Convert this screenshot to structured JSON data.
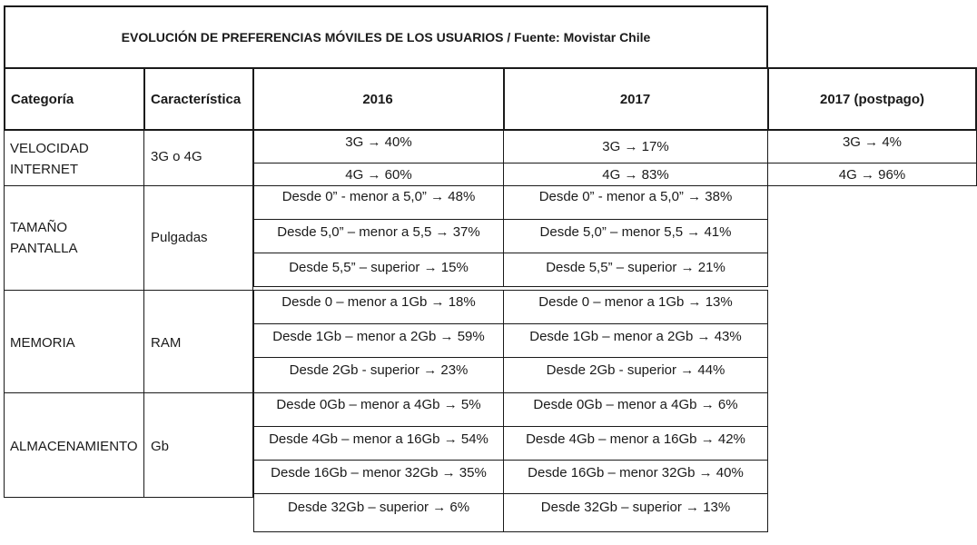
{
  "title": "EVOLUCIÓN DE PREFERENCIAS MÓVILES DE LOS USUARIOS / Fuente: Movistar Chile",
  "headers": {
    "categoria": "Categoría",
    "caracteristica": "Característica",
    "y2016": "2016",
    "y2017": "2017",
    "y2017p": "2017 (postpago)"
  },
  "arrow": "→",
  "rows": {
    "velocidad": {
      "cat": "VELOCIDAD INTERNET",
      "car": "3G o 4G",
      "c2016": [
        "3G",
        "40%",
        "4G",
        "60%"
      ],
      "c2017": [
        "3G",
        "17%",
        "4G",
        "83%"
      ],
      "c2017p": [
        "3G",
        "4%",
        "4G",
        "96%"
      ]
    },
    "pantalla": {
      "cat": "TAMAÑO PANTALLA",
      "car": "Pulgadas",
      "c2016": [
        {
          "label": "Desde 0” - menor a 5,0”",
          "value": "48%"
        },
        {
          "label": "Desde 5,0” – menor a 5,5",
          "value": "37%"
        },
        {
          "label": "Desde 5,5” – superior",
          "value": "15%"
        }
      ],
      "c2017": [
        {
          "label": "Desde 0” - menor a 5,0”",
          "value": "38%"
        },
        {
          "label": "Desde 5,0” – menor 5,5",
          "value": "41%"
        },
        {
          "label": "Desde 5,5” – superior",
          "value": "21%"
        }
      ]
    },
    "memoria": {
      "cat": "MEMORIA",
      "car": "RAM",
      "c2016": [
        {
          "label": "Desde 0 – menor a 1Gb",
          "value": "18%"
        },
        {
          "label": "Desde 1Gb – menor a 2Gb",
          "value": "59%"
        },
        {
          "label": "Desde 2Gb - superior",
          "value": "23%"
        }
      ],
      "c2017": [
        {
          "label": "Desde 0 – menor a 1Gb",
          "value": "13%"
        },
        {
          "label": "Desde 1Gb – menor a 2Gb",
          "value": "43%"
        },
        {
          "label": "Desde 2Gb - superior",
          "value": "44%"
        }
      ]
    },
    "almacenamiento": {
      "cat": "ALMACENAMIENTO",
      "car": "Gb",
      "c2016": [
        {
          "label": "Desde 0Gb – menor a 4Gb",
          "value": "5%"
        },
        {
          "label": "Desde 4Gb – menor a 16Gb",
          "value": "54%"
        },
        {
          "label": "Desde 16Gb – menor 32Gb",
          "value": "35%"
        },
        {
          "label": "Desde 32Gb – superior",
          "value": "6%"
        }
      ],
      "c2017": [
        {
          "label": "Desde 0Gb – menor a 4Gb",
          "value": "6%"
        },
        {
          "label": "Desde 4Gb – menor a 16Gb",
          "value": "42%"
        },
        {
          "label": "Desde 16Gb – menor 32Gb",
          "value": "40%"
        },
        {
          "label": "Desde 32Gb – superior",
          "value": "13%"
        }
      ]
    }
  }
}
